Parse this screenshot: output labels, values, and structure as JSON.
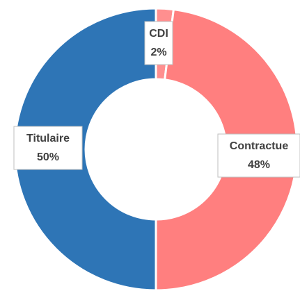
{
  "chart_data": {
    "type": "donut",
    "categories": [
      "CDI",
      "Contractue",
      "Titulaire"
    ],
    "values": [
      2,
      48,
      50
    ],
    "value_labels": [
      "2%",
      "48%",
      "50%"
    ],
    "colors": [
      "#ff8f8f",
      "#ff7f7f",
      "#2e75b6"
    ]
  }
}
